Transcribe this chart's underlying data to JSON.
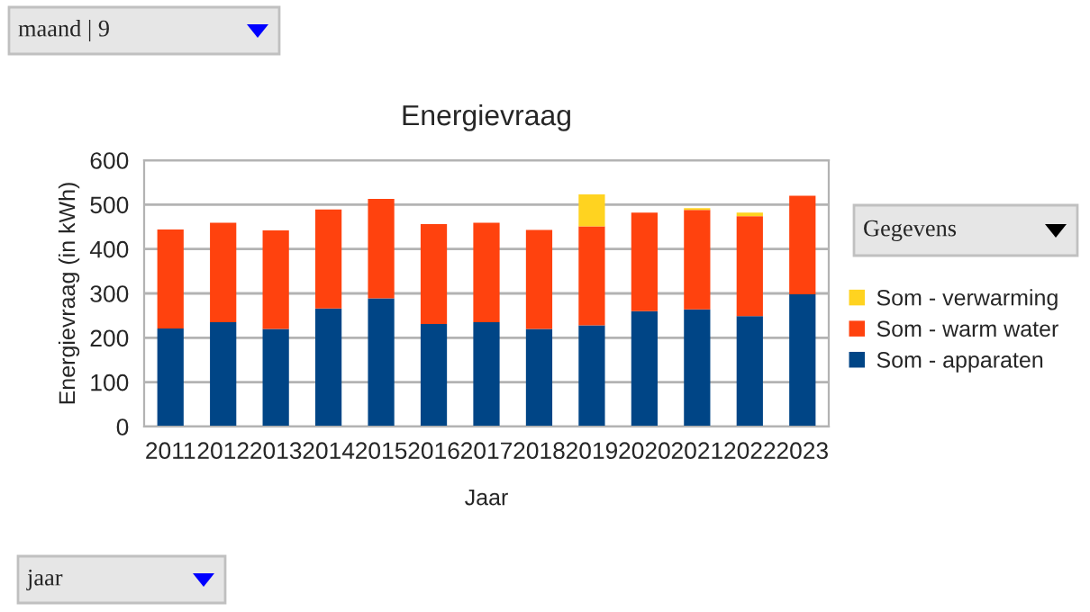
{
  "chart_data": {
    "type": "bar",
    "title": "Energievraag",
    "xlabel": "Jaar",
    "ylabel": "Energievraag (in kWh)",
    "categories": [
      "2011",
      "2012",
      "2013",
      "2014",
      "2015",
      "2016",
      "2017",
      "2018",
      "2019",
      "2020",
      "2021",
      "2022",
      "2023"
    ],
    "series": [
      {
        "name": "Som - apparaten",
        "color": "#004586",
        "values": [
          221,
          235,
          220,
          266,
          289,
          231,
          235,
          220,
          228,
          260,
          264,
          249,
          298
        ]
      },
      {
        "name": "Som - warm water",
        "color": "#ff420e",
        "values": [
          223,
          224,
          222,
          223,
          224,
          225,
          224,
          223,
          223,
          222,
          224,
          225,
          222
        ]
      },
      {
        "name": "Som - verwarming",
        "color": "#ffd320",
        "values": [
          null,
          null,
          null,
          null,
          null,
          null,
          null,
          null,
          72,
          null,
          4,
          8,
          null
        ]
      }
    ],
    "stacked": true,
    "ylim": [
      0,
      600
    ],
    "yticks": [
      0,
      100,
      200,
      300,
      400,
      500,
      600
    ],
    "grid": "y",
    "legend": "right",
    "annotations": [
      "maand | 9",
      "Gegevens",
      "jaar"
    ]
  }
}
